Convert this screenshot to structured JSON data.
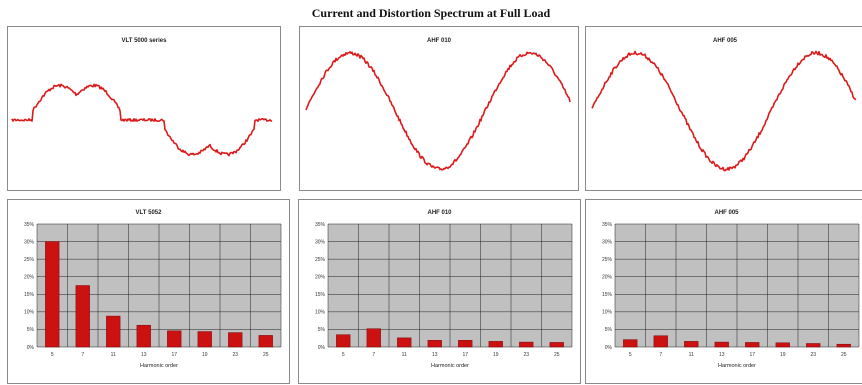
{
  "page": {
    "title": "Current and Distortion Spectrum at Full Load"
  },
  "colors": {
    "trace": "#dd1a1a",
    "bar": "#cc1111",
    "plot_bg": "#c0c0c0",
    "grid": "#222222"
  },
  "chart_data": [
    {
      "type": "line",
      "title": "VLT 5000 series",
      "waveform": "six-pulse-rectifier-current"
    },
    {
      "type": "line",
      "title": "AHF 010",
      "waveform": "near-sinusoidal-current"
    },
    {
      "type": "line",
      "title": "AHF 005",
      "waveform": "near-sinusoidal-current"
    },
    {
      "type": "bar",
      "title": "VLT 5052",
      "xlabel": "Harmonic order",
      "categories": [
        "5",
        "7",
        "11",
        "13",
        "17",
        "19",
        "23",
        "25"
      ],
      "values": [
        30,
        17.5,
        8.8,
        6.2,
        4.6,
        4.4,
        4.1,
        3.3
      ],
      "ylim": [
        0,
        35
      ],
      "grid": true,
      "yticks": [
        "0%",
        "5%",
        "10%",
        "15%",
        "20%",
        "25%",
        "30%",
        "35%"
      ]
    },
    {
      "type": "bar",
      "title": "AHF 010",
      "xlabel": "Harmonic order",
      "categories": [
        "5",
        "7",
        "11",
        "13",
        "17",
        "19",
        "23",
        "25"
      ],
      "values": [
        3.5,
        5.2,
        2.6,
        1.9,
        1.9,
        1.6,
        1.4,
        1.3
      ],
      "ylim": [
        0,
        35
      ],
      "grid": true,
      "yticks": [
        "0%",
        "5%",
        "10%",
        "15%",
        "20%",
        "25%",
        "30%",
        "35%"
      ]
    },
    {
      "type": "bar",
      "title": "AHF 005",
      "xlabel": "Harmonic order",
      "categories": [
        "5",
        "7",
        "11",
        "13",
        "17",
        "19",
        "23",
        "25"
      ],
      "values": [
        2.1,
        3.2,
        1.6,
        1.4,
        1.3,
        1.2,
        1.0,
        0.8
      ],
      "ylim": [
        0,
        35
      ],
      "grid": true,
      "yticks": [
        "0%",
        "5%",
        "10%",
        "15%",
        "20%",
        "25%",
        "30%",
        "35%"
      ]
    }
  ]
}
